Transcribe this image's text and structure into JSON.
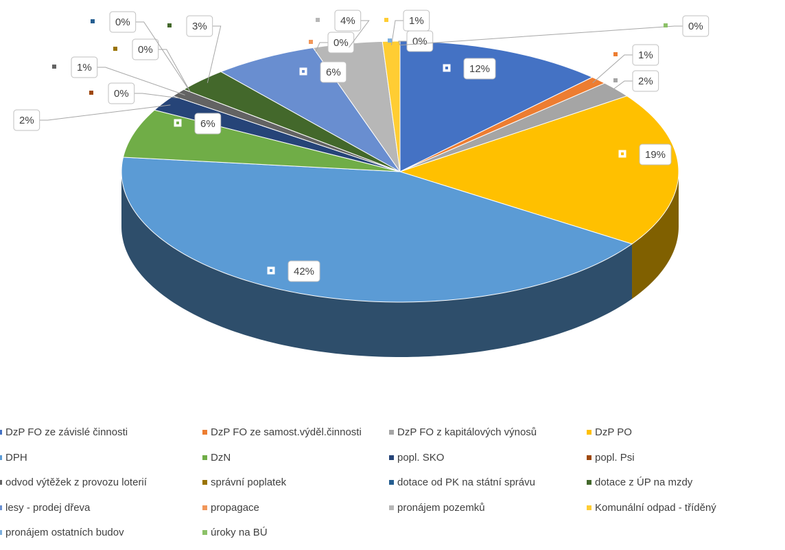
{
  "chart_data": {
    "type": "pie",
    "categories": [
      "DzP FO ze závislé činnosti",
      "DzP FO ze samost.výděl.činnosti",
      "DzP FO z kapitálových výnosů",
      "DzP PO",
      "DPH",
      "DzN",
      "popl. SKO",
      "popl. Psi",
      "odvod výtěžek z provozu loterií",
      "správní poplatek",
      "dotace od PK na státní správu",
      "dotace z ÚP na mzdy",
      "lesy - prodej dřeva",
      "propagace",
      "pronájem pozemků",
      "Komunální odpad - tříděný",
      "pronájem ostatních budov",
      "úroky na BÚ"
    ],
    "values": [
      12,
      1,
      2,
      19,
      42,
      6,
      2,
      0,
      1,
      0,
      0,
      3,
      6,
      0,
      4,
      1,
      0,
      0
    ],
    "value_labels": [
      "12%",
      "1%",
      "2%",
      "19%",
      "42%",
      "6%",
      "2%",
      "0%",
      "1%",
      "0%",
      "0%",
      "3%",
      "6%",
      "0%",
      "4%",
      "1%",
      "0%",
      "0%"
    ],
    "colors": [
      "#4472c4",
      "#ed7d31",
      "#a5a5a5",
      "#ffc000",
      "#5b9bd5",
      "#70ad47",
      "#264478",
      "#9e480e",
      "#636363",
      "#997300",
      "#255e91",
      "#43682b",
      "#698ed0",
      "#f1975a",
      "#b7b7b7",
      "#ffcd33",
      "#7cafdd",
      "#8cc168"
    ],
    "legend": "bottom"
  }
}
